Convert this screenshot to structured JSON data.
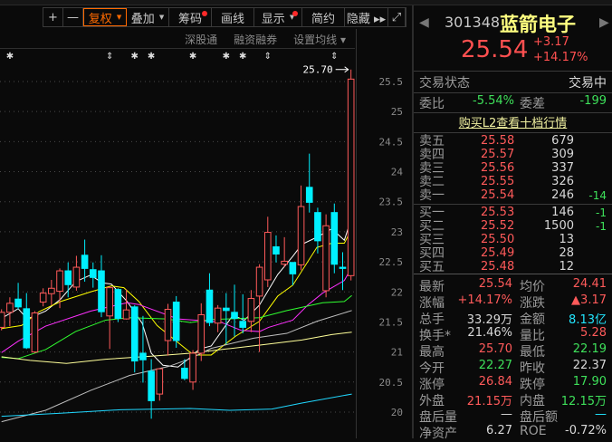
{
  "toolbar": {
    "items": [
      {
        "label": "+",
        "name": "zoom-in-button"
      },
      {
        "label": "—",
        "name": "zoom-out-button"
      },
      {
        "label": "复权",
        "name": "adjust-button",
        "caret": true,
        "active": true
      },
      {
        "label": "叠加",
        "name": "overlay-button",
        "caret": true
      },
      {
        "label": "筹码",
        "name": "chips-button",
        "dot": true
      },
      {
        "label": "画线",
        "name": "draw-line-button"
      },
      {
        "label": "显示",
        "name": "display-button",
        "caret": true,
        "dot": true
      },
      {
        "label": "简约",
        "name": "simple-button"
      },
      {
        "label": "隐藏 ▸▸",
        "name": "hide-button"
      },
      {
        "label": "⤢",
        "name": "fullscreen-button"
      }
    ]
  },
  "subbar": {
    "items": [
      "深股通",
      "融资融券",
      "设置均线 ▾"
    ]
  },
  "chart_data": {
    "type": "candlestick",
    "y_ticks": [
      25.5,
      25.0,
      24.5,
      24.0,
      23.5,
      23.0,
      22.5,
      22.0,
      21.5,
      21.0,
      20.5,
      20.0
    ],
    "ylim": [
      19.85,
      25.8
    ],
    "grid": true,
    "high_label": "25.70",
    "colors": {
      "up": "#ff5a5a",
      "down": "#00f0ff"
    },
    "candles": [
      [
        21.41,
        21.71,
        21.36,
        21.66
      ],
      [
        21.66,
        21.91,
        21.43,
        21.81
      ],
      [
        21.88,
        22.15,
        21.71,
        21.75
      ],
      [
        21.72,
        21.98,
        21.05,
        21.07
      ],
      [
        21.0,
        21.68,
        20.98,
        21.65
      ],
      [
        21.83,
        22.06,
        21.76,
        21.98
      ],
      [
        21.97,
        22.2,
        21.78,
        22.06
      ],
      [
        22.01,
        22.39,
        21.73,
        22.35
      ],
      [
        22.35,
        22.49,
        21.91,
        22.12
      ],
      [
        22.08,
        22.6,
        22.02,
        22.41
      ],
      [
        22.61,
        22.87,
        22.17,
        22.39
      ],
      [
        22.37,
        22.49,
        22.07,
        22.24
      ],
      [
        22.35,
        22.61,
        21.58,
        21.67
      ],
      [
        21.6,
        22.09,
        21.05,
        22.07
      ],
      [
        22.04,
        22.06,
        21.5,
        21.56
      ],
      [
        21.55,
        22.04,
        21.54,
        21.7
      ],
      [
        21.75,
        21.78,
        20.66,
        20.85
      ],
      [
        20.98,
        21.6,
        20.49,
        20.87
      ],
      [
        20.68,
        20.88,
        19.89,
        20.19
      ],
      [
        20.3,
        20.73,
        20.19,
        20.72
      ],
      [
        21.19,
        21.8,
        20.94,
        21.71
      ],
      [
        21.83,
        21.93,
        21.07,
        21.19
      ],
      [
        20.73,
        20.88,
        20.53,
        20.56
      ],
      [
        20.5,
        21.03,
        20.37,
        20.98
      ],
      [
        20.98,
        21.81,
        20.85,
        21.62
      ],
      [
        22.03,
        22.31,
        21.43,
        21.49
      ],
      [
        21.48,
        21.78,
        21.33,
        21.73
      ],
      [
        21.73,
        21.98,
        21.13,
        21.69
      ],
      [
        21.66,
        22.12,
        21.26,
        21.56
      ],
      [
        21.51,
        21.96,
        21.31,
        21.41
      ],
      [
        21.51,
        22.03,
        21.33,
        21.89
      ],
      [
        21.93,
        22.46,
        21.0,
        22.41
      ],
      [
        22.2,
        23.25,
        22.08,
        22.99
      ],
      [
        22.75,
        22.94,
        22.49,
        22.63
      ],
      [
        22.46,
        22.91,
        22.41,
        22.51
      ],
      [
        22.49,
        22.49,
        22.11,
        22.3
      ],
      [
        22.45,
        23.77,
        22.36,
        23.42
      ],
      [
        23.74,
        24.3,
        23.32,
        23.49
      ],
      [
        23.32,
        23.4,
        22.64,
        22.85
      ],
      [
        22.02,
        23.29,
        21.91,
        23.1
      ],
      [
        23.32,
        23.47,
        22.31,
        22.46
      ],
      [
        22.41,
        22.66,
        22.03,
        22.39
      ],
      [
        22.27,
        25.7,
        22.19,
        25.54
      ]
    ],
    "candle_fields": [
      "open",
      "high",
      "low",
      "close"
    ],
    "ma_lines": [
      {
        "color": "#ffffff",
        "points": [
          [
            0,
            21.56
          ],
          [
            2,
            21.72
          ],
          [
            3.1,
            21.55
          ],
          [
            5.3,
            21.68
          ],
          [
            7.1,
            21.88
          ],
          [
            8.9,
            22.17
          ],
          [
            10.7,
            22.28
          ],
          [
            12.1,
            22.15
          ],
          [
            13.2,
            22.13
          ],
          [
            15.1,
            21.84
          ],
          [
            16.9,
            21.48
          ],
          [
            18,
            20.98
          ],
          [
            19.4,
            20.78
          ],
          [
            21.2,
            20.75
          ],
          [
            22.7,
            20.91
          ],
          [
            23.8,
            21.05
          ],
          [
            25.2,
            21.1
          ],
          [
            27.8,
            21.61
          ],
          [
            29.2,
            21.53
          ],
          [
            31,
            21.78
          ],
          [
            33.2,
            22.29
          ],
          [
            35,
            22.59
          ],
          [
            36.1,
            22.79
          ],
          [
            37.9,
            22.91
          ],
          [
            39.7,
            23.05
          ],
          [
            41.2,
            22.86
          ],
          [
            42.1,
            23.24
          ]
        ]
      },
      {
        "color": "#ffff00",
        "points": [
          [
            0,
            21.39
          ],
          [
            2.4,
            21.44
          ],
          [
            4.5,
            21.67
          ],
          [
            7.1,
            21.84
          ],
          [
            10.7,
            22.0
          ],
          [
            13.2,
            22.1
          ],
          [
            14.7,
            22.07
          ],
          [
            16.5,
            21.84
          ],
          [
            18.7,
            21.44
          ],
          [
            22.7,
            20.99
          ],
          [
            23.0,
            20.95
          ],
          [
            25.2,
            20.95
          ],
          [
            28.1,
            21.26
          ],
          [
            31,
            21.51
          ],
          [
            33.2,
            21.93
          ],
          [
            35,
            22.11
          ],
          [
            37.9,
            22.74
          ],
          [
            39.7,
            22.81
          ],
          [
            41.2,
            22.81
          ],
          [
            42.1,
            23.05
          ]
        ]
      },
      {
        "color": "#ff30ff",
        "points": [
          [
            0,
            20.99
          ],
          [
            2,
            21.18
          ],
          [
            5.3,
            21.43
          ],
          [
            10.7,
            21.68
          ],
          [
            15.1,
            21.82
          ],
          [
            16.5,
            21.79
          ],
          [
            21.2,
            21.55
          ],
          [
            26.3,
            21.5
          ],
          [
            28.8,
            21.36
          ],
          [
            31,
            21.34
          ],
          [
            32.1,
            21.41
          ],
          [
            35,
            21.53
          ],
          [
            36.8,
            21.78
          ],
          [
            38.6,
            21.98
          ],
          [
            41.2,
            22.19
          ],
          [
            42.1,
            22.41
          ]
        ]
      },
      {
        "color": "#30ff30",
        "points": [
          [
            0,
            20.91
          ],
          [
            2,
            20.89
          ],
          [
            5.3,
            21.04
          ],
          [
            8.9,
            21.34
          ],
          [
            12.5,
            21.53
          ],
          [
            15.4,
            21.57
          ],
          [
            19.8,
            21.55
          ],
          [
            22.7,
            21.49
          ],
          [
            25.2,
            21.54
          ],
          [
            31,
            21.57
          ],
          [
            34.3,
            21.69
          ],
          [
            38.6,
            21.82
          ],
          [
            41.2,
            21.84
          ],
          [
            42.1,
            21.94
          ]
        ]
      },
      {
        "color": "#ffff99",
        "points": [
          [
            0,
            20.92
          ],
          [
            3.4,
            20.86
          ],
          [
            7.8,
            20.81
          ],
          [
            12.5,
            20.88
          ],
          [
            18,
            20.93
          ],
          [
            22.7,
            20.98
          ],
          [
            27,
            21.05
          ],
          [
            31.4,
            21.12
          ],
          [
            36.1,
            21.2
          ],
          [
            39.7,
            21.29
          ],
          [
            42.1,
            21.33
          ]
        ]
      },
      {
        "color": "#c0c0c0",
        "points": [
          [
            0,
            19.84
          ],
          [
            5.3,
            20.03
          ],
          [
            10.7,
            20.36
          ],
          [
            15.4,
            20.61
          ],
          [
            20.1,
            20.76
          ],
          [
            22.7,
            20.89
          ],
          [
            25.2,
            21.06
          ],
          [
            30.3,
            21.23
          ],
          [
            34.3,
            21.31
          ],
          [
            37.9,
            21.51
          ],
          [
            42.1,
            21.69
          ]
        ]
      },
      {
        "color": "#20d8ff",
        "points": [
          [
            0,
            19.93
          ],
          [
            7.1,
            19.98
          ],
          [
            14.3,
            20.04
          ],
          [
            22.7,
            20.06
          ],
          [
            27.4,
            20.03
          ],
          [
            32.5,
            20.05
          ],
          [
            36.1,
            20.15
          ],
          [
            42.1,
            20.3
          ]
        ]
      }
    ],
    "event_markers": [
      {
        "index": 1,
        "symbol": "✱"
      },
      {
        "index": 13,
        "symbol": "⇕"
      },
      {
        "index": 16,
        "symbol": "✱"
      },
      {
        "index": 18,
        "symbol": "✱"
      },
      {
        "index": 23,
        "symbol": "✱"
      },
      {
        "index": 27,
        "symbol": "✱"
      },
      {
        "index": 29,
        "symbol": "✱"
      },
      {
        "index": 32,
        "symbol": "⇕"
      },
      {
        "index": 40,
        "symbol": "⇕"
      }
    ]
  },
  "quote": {
    "code": "301348",
    "name": "蓝箭电子",
    "price": "25.54",
    "change": "+3.17",
    "change_pct": "+14.17%",
    "status_label": "交易状态",
    "status_value": "交易中",
    "wb_label": "委比",
    "wb_value": "-5.54%",
    "wc_label": "委差",
    "wc_value": "-199",
    "l2_link": "购买L2查看十档行情",
    "asks": [
      {
        "label": "卖五",
        "price": "25.58",
        "vol": "679",
        "delta": ""
      },
      {
        "label": "卖四",
        "price": "25.57",
        "vol": "309",
        "delta": ""
      },
      {
        "label": "卖三",
        "price": "25.56",
        "vol": "337",
        "delta": ""
      },
      {
        "label": "卖二",
        "price": "25.55",
        "vol": "326",
        "delta": ""
      },
      {
        "label": "卖一",
        "price": "25.54",
        "vol": "246",
        "delta": "-14"
      }
    ],
    "bids": [
      {
        "label": "买一",
        "price": "25.53",
        "vol": "146",
        "delta": "-1"
      },
      {
        "label": "买二",
        "price": "25.52",
        "vol": "1500",
        "delta": "-1"
      },
      {
        "label": "买三",
        "price": "25.50",
        "vol": "13",
        "delta": ""
      },
      {
        "label": "买四",
        "price": "25.49",
        "vol": "28",
        "delta": ""
      },
      {
        "label": "买五",
        "price": "25.48",
        "vol": "12",
        "delta": ""
      }
    ],
    "stats": [
      {
        "l1": "最新",
        "v1": "25.54",
        "c1": "red",
        "l2": "均价",
        "v2": "24.41",
        "c2": "red"
      },
      {
        "l1": "涨幅",
        "v1": "+14.17%",
        "c1": "red",
        "l2": "涨跌",
        "v2": "▲3.17",
        "c2": "red"
      },
      {
        "l1": "总手",
        "v1": "33.29万",
        "c1": "white",
        "l2": "金额",
        "v2": "8.13亿",
        "c2": "cyan"
      },
      {
        "l1": "换手*",
        "v1": "21.46%",
        "c1": "white",
        "l2": "量比",
        "v2": "5.28",
        "c2": "red"
      },
      {
        "l1": "最高",
        "v1": "25.70",
        "c1": "red",
        "l2": "最低",
        "v2": "22.19",
        "c2": "green"
      },
      {
        "l1": "今开",
        "v1": "22.27",
        "c1": "green",
        "l2": "昨收",
        "v2": "22.37",
        "c2": "white"
      },
      {
        "l1": "涨停",
        "v1": "26.84",
        "c1": "red",
        "l2": "跌停",
        "v2": "17.90",
        "c2": "green"
      },
      {
        "l1": "外盘",
        "v1": "21.15万",
        "c1": "red",
        "l2": "内盘",
        "v2": "12.15万",
        "c2": "green"
      },
      {
        "l1": "盘后量",
        "v1": "—",
        "c1": "white",
        "l2": "盘后额",
        "v2": "—",
        "c2": "cyan"
      },
      {
        "l1": "净资产",
        "v1": "6.27",
        "c1": "white",
        "l2": "ROE",
        "v2": "-0.72%",
        "c2": "white"
      }
    ]
  }
}
